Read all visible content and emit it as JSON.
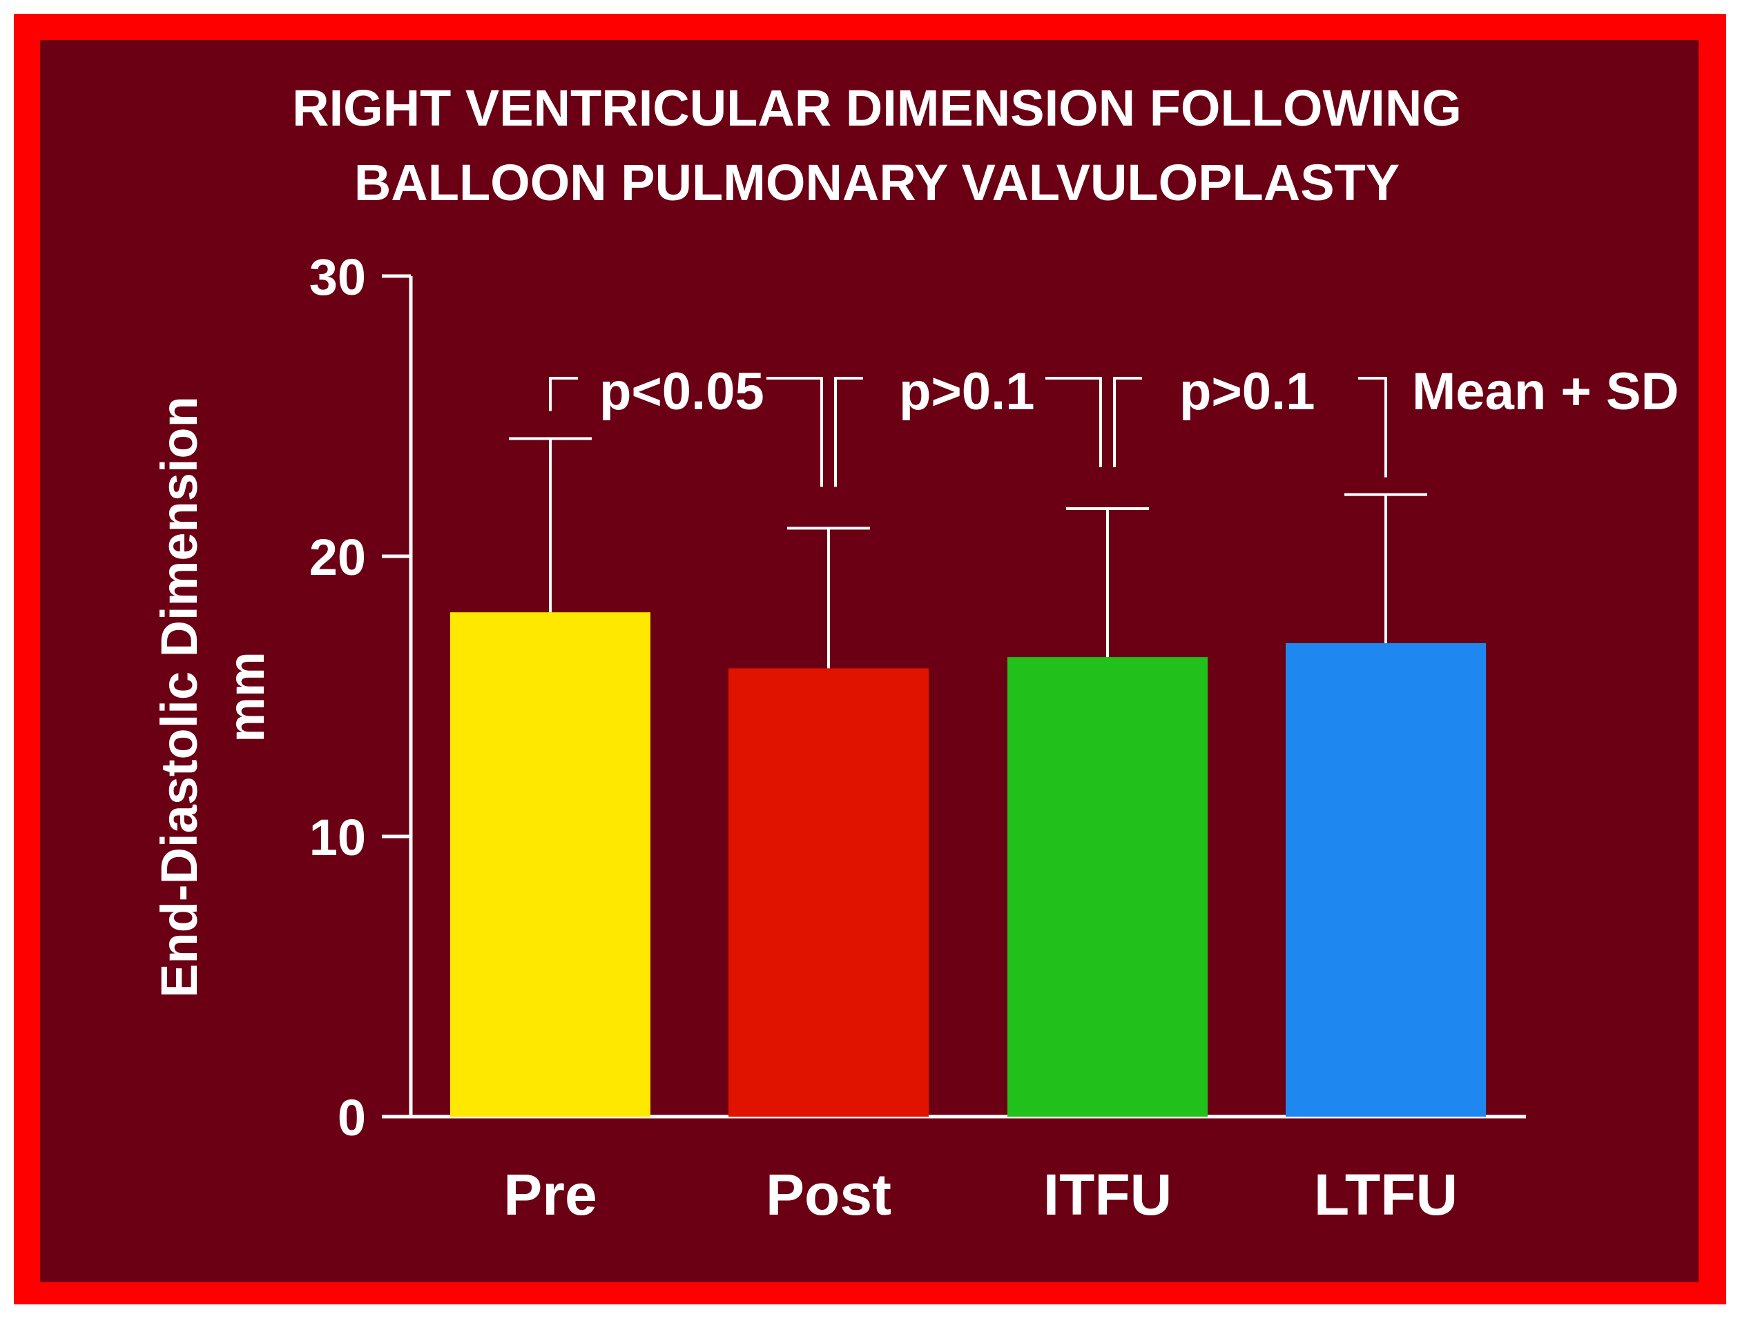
{
  "chart_data": {
    "type": "bar",
    "title_lines": [
      "RIGHT VENTRICULAR DIMENSION FOLLOWING",
      "BALLOON PULMONARY VALVULOPLASTY"
    ],
    "ylabel_lines": [
      "End-Diastolic Dimension",
      "mm"
    ],
    "xlabel": "",
    "ylim": [
      0,
      30
    ],
    "yticks": [
      0,
      10,
      20,
      30
    ],
    "categories": [
      "Pre",
      "Post",
      "ITFU",
      "LTFU"
    ],
    "values": [
      18.0,
      16.0,
      16.4,
      16.9
    ],
    "sd": [
      6.2,
      5.0,
      5.3,
      5.3
    ],
    "colors": [
      "#ffe800",
      "#e01200",
      "#22c01a",
      "#1e88f0"
    ],
    "annotations": [
      "p<0.05",
      "p>0.1",
      "p>0.1",
      "Mean + SD"
    ],
    "grid": false,
    "legend": "none"
  },
  "colors": {
    "background": "#6b0014",
    "frame": "#ff0000",
    "text": "#ffffff"
  }
}
